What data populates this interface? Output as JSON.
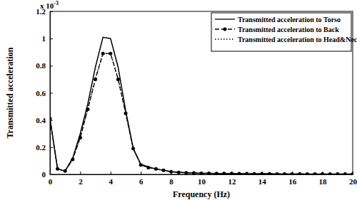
{
  "chart_data": {
    "type": "line",
    "x_label": "Frequency (Hz)",
    "y_label": "Transmitted acceleration",
    "annotations": [
      {
        "text": "x 10",
        "superscript": "-3"
      }
    ],
    "x": [
      0,
      0.5,
      1,
      1.5,
      2,
      2.5,
      3,
      3.5,
      4,
      4.5,
      5,
      5.5,
      6,
      6.5,
      7,
      7.5,
      8,
      8.5,
      9,
      9.5,
      10,
      10.5,
      11,
      11.5,
      12,
      12.5,
      13,
      13.5,
      14,
      14.5,
      15,
      15.5,
      16,
      16.5,
      17,
      17.5,
      18,
      18.5,
      19,
      19.5,
      20
    ],
    "xlim": [
      0,
      20
    ],
    "xticks": [
      0,
      2,
      4,
      6,
      8,
      10,
      12,
      14,
      16,
      18,
      20
    ],
    "ylim": [
      0,
      1.2
    ],
    "yticks": [
      0,
      0.2,
      0.4,
      0.6,
      0.8,
      1,
      1.2
    ],
    "grid": false,
    "legend": "top-right",
    "series": [
      {
        "name": "Transmitted acceleration to Torso",
        "color": "#000000",
        "line_style": "solid",
        "marker": "none",
        "values": [
          0.41,
          0.04,
          0.025,
          0.12,
          0.3,
          0.52,
          0.79,
          1.01,
          1.0,
          0.79,
          0.47,
          0.19,
          0.075,
          0.055,
          0.04,
          0.03,
          0.02,
          0.016,
          0.012,
          0.01,
          0.008,
          0.008,
          0.007,
          0.006,
          0.006,
          0.005,
          0.005,
          0.004,
          0.004,
          0.004,
          0.003,
          0.003,
          0.003,
          0.003,
          0.002,
          0.002,
          0.002,
          0.002,
          0.002,
          0.002,
          0.002
        ]
      },
      {
        "name": "Transmitted acceleration to Back",
        "color": "#000000",
        "line_style": "dashed",
        "marker": "circle",
        "values": [
          0.41,
          0.04,
          0.025,
          0.11,
          0.27,
          0.48,
          0.7,
          0.89,
          0.89,
          0.7,
          0.45,
          0.19,
          0.07,
          0.05,
          0.04,
          0.03,
          0.02,
          0.015,
          0.012,
          0.01,
          0.008,
          0.008,
          0.007,
          0.006,
          0.006,
          0.005,
          0.005,
          0.004,
          0.004,
          0.004,
          0.003,
          0.003,
          0.003,
          0.003,
          0.002,
          0.002,
          0.002,
          0.002,
          0.002,
          0.002,
          0.002
        ]
      },
      {
        "name": "Transmitted acceleration to Head&Neck",
        "color": "#000000",
        "line_style": "dotted",
        "marker": "none",
        "values": [
          0.41,
          0.04,
          0.025,
          0.11,
          0.27,
          0.48,
          0.71,
          0.89,
          0.89,
          0.71,
          0.45,
          0.19,
          0.07,
          0.05,
          0.04,
          0.03,
          0.02,
          0.015,
          0.012,
          0.01,
          0.008,
          0.008,
          0.007,
          0.006,
          0.006,
          0.005,
          0.005,
          0.004,
          0.004,
          0.004,
          0.003,
          0.003,
          0.003,
          0.003,
          0.002,
          0.002,
          0.002,
          0.002,
          0.002,
          0.002,
          0.002
        ]
      }
    ]
  }
}
